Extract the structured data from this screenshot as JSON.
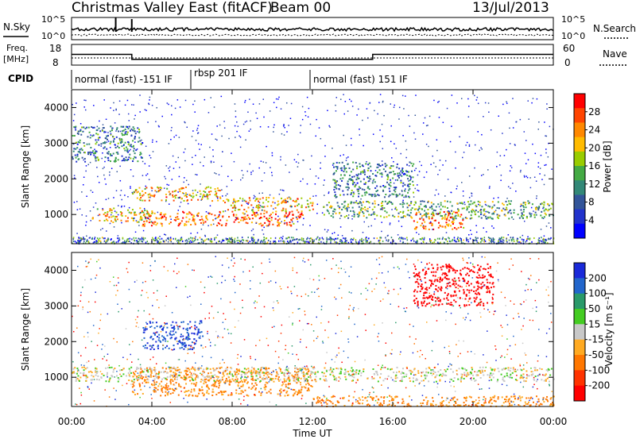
{
  "header": {
    "title": "Christmas Valley East (fitACF)",
    "beam": "Beam 00",
    "date": "13/Jul/2013"
  },
  "noise_panel": {
    "left_label": "N.Sky",
    "right_label": "N.Search",
    "left_ticks": [
      "10^5",
      "10^0"
    ],
    "right_ticks": [
      "10^5",
      "10^0"
    ]
  },
  "freq_panel": {
    "left_label_1": "Freq.",
    "left_label_2": "[MHz]",
    "right_label": "Nave",
    "left_ticks": [
      "18",
      "8"
    ],
    "right_ticks": [
      "60",
      "0"
    ],
    "freq_steps": [
      {
        "from_h": 0,
        "to_h": 3,
        "mhz": 13.2
      },
      {
        "from_h": 3,
        "to_h": 15,
        "mhz": 10.8
      },
      {
        "from_h": 15,
        "to_h": 24,
        "mhz": 13.2
      }
    ]
  },
  "cpid": {
    "label": "CPID",
    "segments": [
      {
        "start_h": 0,
        "text": "normal (fast) -151 IF"
      },
      {
        "start_h": 6,
        "text": "rbsp 201 IF"
      },
      {
        "start_h": 12,
        "text": "normal (fast) 151 IF"
      }
    ]
  },
  "power_panel": {
    "ylabel": "Slant Range [km]",
    "yticks": [
      "4000",
      "3000",
      "2000",
      "1000"
    ],
    "colorbar_label": "Power [dB]",
    "colorbar_ticks": [
      "28",
      "24",
      "20",
      "16",
      "12",
      "8",
      "4"
    ],
    "colorbar_colors": [
      "#ff0000",
      "#ff4400",
      "#ff8800",
      "#ffbb00",
      "#99cc00",
      "#44aa44",
      "#338877",
      "#335599",
      "#2233cc",
      "#0000ff"
    ]
  },
  "velocity_panel": {
    "ylabel": "Slant Range [km]",
    "yticks": [
      "4000",
      "3000",
      "2000",
      "1000"
    ],
    "colorbar_label": "Velocity [m s⁻¹]",
    "colorbar_ticks": [
      "200",
      "100",
      "50",
      "15",
      "-15",
      "-50",
      "-100",
      "-200"
    ],
    "colorbar_colors": [
      "#1a2ad9",
      "#2266cc",
      "#2a9a6a",
      "#44cc22",
      "#c8c8c8",
      "#ffaa22",
      "#ff7700",
      "#ff3300",
      "#ff0000"
    ]
  },
  "xaxis": {
    "label": "Time UT",
    "ticks": [
      "00:00",
      "04:00",
      "08:00",
      "12:00",
      "16:00",
      "20:00",
      "00:00"
    ]
  },
  "chart_data": {
    "type": "heatmap",
    "title": "Christmas Valley East (fitACF)",
    "xlabel": "Time UT",
    "ylabel": "Slant Range [km]",
    "xlim_hours": [
      0,
      24
    ],
    "ylim_km": [
      180,
      4500
    ],
    "power_echo_regions": [
      {
        "t0": 1.0,
        "t1": 4.0,
        "r0": 800,
        "r1": 1200,
        "db": 20
      },
      {
        "t0": 3.5,
        "t1": 11.5,
        "r0": 700,
        "r1": 1100,
        "db": 26
      },
      {
        "t0": 3.0,
        "t1": 7.5,
        "r0": 1400,
        "r1": 1800,
        "db": 22
      },
      {
        "t0": 7.5,
        "t1": 12.0,
        "r0": 1100,
        "r1": 1500,
        "db": 22
      },
      {
        "t0": 0.0,
        "t1": 3.5,
        "r0": 2500,
        "r1": 3500,
        "db": 10
      },
      {
        "t0": 12.5,
        "t1": 24.0,
        "r0": 900,
        "r1": 1400,
        "db": 14
      },
      {
        "t0": 17.0,
        "t1": 19.5,
        "r0": 600,
        "r1": 1100,
        "db": 26
      },
      {
        "t0": 13.0,
        "t1": 17.0,
        "r0": 1500,
        "r1": 2500,
        "db": 10
      }
    ],
    "velocity_regions": [
      {
        "t0": 3.0,
        "t1": 12.0,
        "r0": 500,
        "r1": 1300,
        "ms": -60
      },
      {
        "t0": 0.0,
        "t1": 24.0,
        "r0": 900,
        "r1": 1300,
        "ms": 0
      },
      {
        "t0": 12.0,
        "t1": 24.0,
        "r0": 200,
        "r1": 500,
        "ms": -60
      },
      {
        "t0": 17.0,
        "t1": 21.0,
        "r0": 3000,
        "r1": 4200,
        "ms": -200
      },
      {
        "t0": 3.5,
        "t1": 6.5,
        "r0": 1800,
        "r1": 2600,
        "ms": 150
      }
    ]
  }
}
